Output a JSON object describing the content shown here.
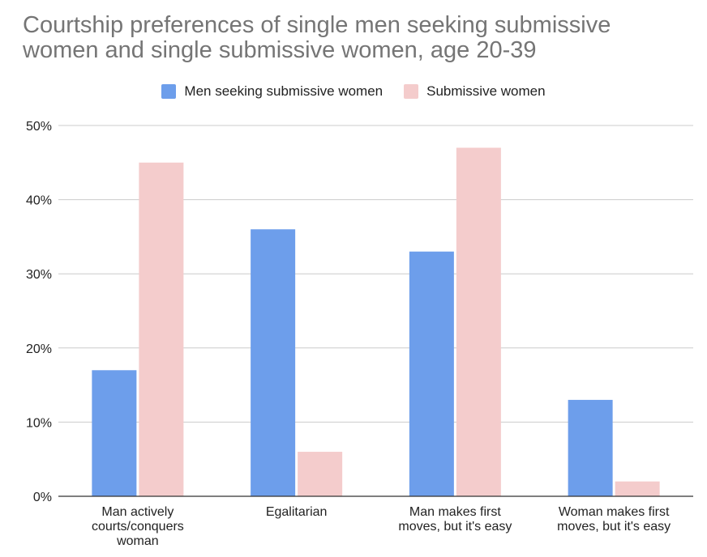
{
  "colors": {
    "men": "#6d9eeb",
    "women": "#f4cccc",
    "grid": "#cccccc",
    "axis": "#333333"
  },
  "chart_data": {
    "type": "bar",
    "title": "Courtship preferences of single men seeking submissive women and single submissive women, age 20-39",
    "xlabel": "",
    "ylabel": "",
    "ylim": [
      0,
      50
    ],
    "yticks": [
      "0%",
      "10%",
      "20%",
      "30%",
      "40%",
      "50%"
    ],
    "legend_position": "top",
    "categories": [
      [
        "Man actively",
        "courts/conquers",
        "woman"
      ],
      [
        "Egalitarian"
      ],
      [
        "Man makes first",
        "moves, but it's easy"
      ],
      [
        "Woman makes first",
        "moves, but it's easy"
      ]
    ],
    "series": [
      {
        "name": "Men seeking submissive women",
        "color": "#6d9eeb",
        "values": [
          17,
          36,
          33,
          13
        ]
      },
      {
        "name": "Submissive women",
        "color": "#f4cccc",
        "values": [
          45,
          6,
          47,
          2
        ]
      }
    ]
  }
}
